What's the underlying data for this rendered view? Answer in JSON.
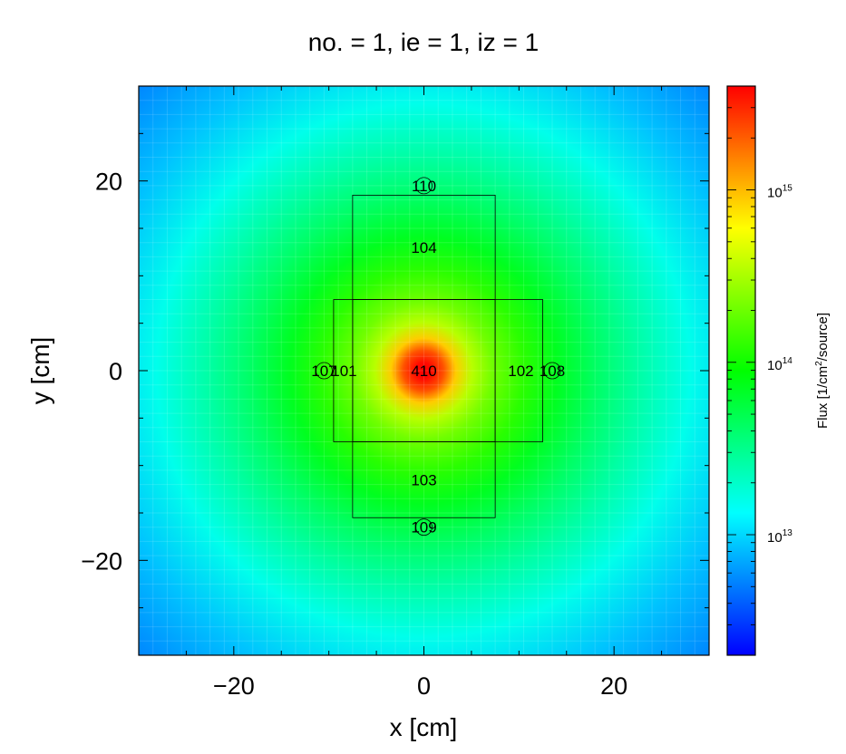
{
  "chart_data": {
    "type": "heatmap",
    "title": "no. =  1,  ie =  1,  iz =  1",
    "xlabel": "x [cm]",
    "ylabel": "y [cm]",
    "xlim": [
      -30,
      30
    ],
    "ylim": [
      -30,
      30
    ],
    "x_ticks": [
      -20,
      0,
      20
    ],
    "y_ticks": [
      -20,
      0,
      20
    ],
    "x_tick_labels": [
      "−20",
      "0",
      "20"
    ],
    "y_tick_labels": [
      "−20",
      "0",
      "20"
    ],
    "colorbar": {
      "scale": "log",
      "min": 2000000000000.0,
      "max": 4000000000000000.0,
      "label": "Flux [1/cm²/source]",
      "label_parts": {
        "pre": "Flux [1/cm",
        "sup": "2",
        "post": "/source]"
      },
      "ticks": [
        {
          "value": 10000000000000.0,
          "base": "10",
          "exp": "13"
        },
        {
          "value": 100000000000000.0,
          "base": "10",
          "exp": "14"
        },
        {
          "value": 1000000000000000.0,
          "base": "10",
          "exp": "15"
        }
      ],
      "colormap": [
        "#0000ff",
        "#0080ff",
        "#00ffff",
        "#00ff80",
        "#00ff00",
        "#80ff00",
        "#ffff00",
        "#ff8000",
        "#ff0000"
      ]
    },
    "field": {
      "peak_flux": 4000000000000000.0,
      "center": [
        0,
        0
      ]
    },
    "regions": [
      {
        "label": "410",
        "x0": -7.5,
        "x1": 7.5,
        "y0": -7.5,
        "y1": 7.5,
        "lx": 0,
        "ly": 0
      },
      {
        "label": "104",
        "x0": -7.5,
        "x1": 7.5,
        "y0": 7.5,
        "y1": 18.5,
        "lx": 0,
        "ly": 13
      },
      {
        "label": "103",
        "x0": -7.5,
        "x1": 7.5,
        "y0": -15.5,
        "y1": -7.5,
        "lx": 0,
        "ly": -11.5
      },
      {
        "label": "101",
        "x0": -9.5,
        "x1": -7.5,
        "y0": -7.5,
        "y1": 7.5,
        "lx": -8.4,
        "ly": 0
      },
      {
        "label": "102",
        "x0": 7.5,
        "x1": 12.5,
        "y0": -7.5,
        "y1": 7.5,
        "lx": 10.2,
        "ly": 0
      }
    ],
    "points": [
      {
        "label": "110",
        "x": 0,
        "y": 19.5
      },
      {
        "label": "109",
        "x": 0,
        "y": -16.5
      },
      {
        "label": "107",
        "x": -10.5,
        "y": 0
      },
      {
        "label": "108",
        "x": 13.5,
        "y": 0
      }
    ]
  }
}
